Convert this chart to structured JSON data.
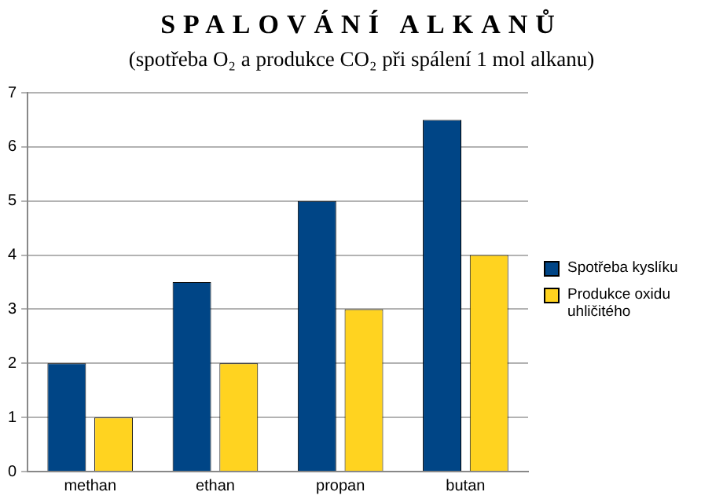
{
  "chart_data": {
    "type": "bar",
    "title": "SPALOVÁNÍ ALKANŮ",
    "subtitle": "(spotřeba O₂ a produkce CO₂ při spálení 1 mol alkanu)",
    "categories": [
      "methan",
      "ethan",
      "propan",
      "butan"
    ],
    "series": [
      {
        "name": "Spotřeba kyslíku",
        "color": "#004586",
        "values": [
          2,
          3.5,
          5,
          6.5
        ]
      },
      {
        "name": "Produkce oxidu uhličitého",
        "color": "#ffd320",
        "values": [
          1,
          2,
          3,
          4
        ]
      }
    ],
    "ylim": [
      0,
      7
    ],
    "yticks": [
      0,
      1,
      2,
      3,
      4,
      5,
      6,
      7
    ],
    "grid": "y",
    "legend": "right"
  }
}
